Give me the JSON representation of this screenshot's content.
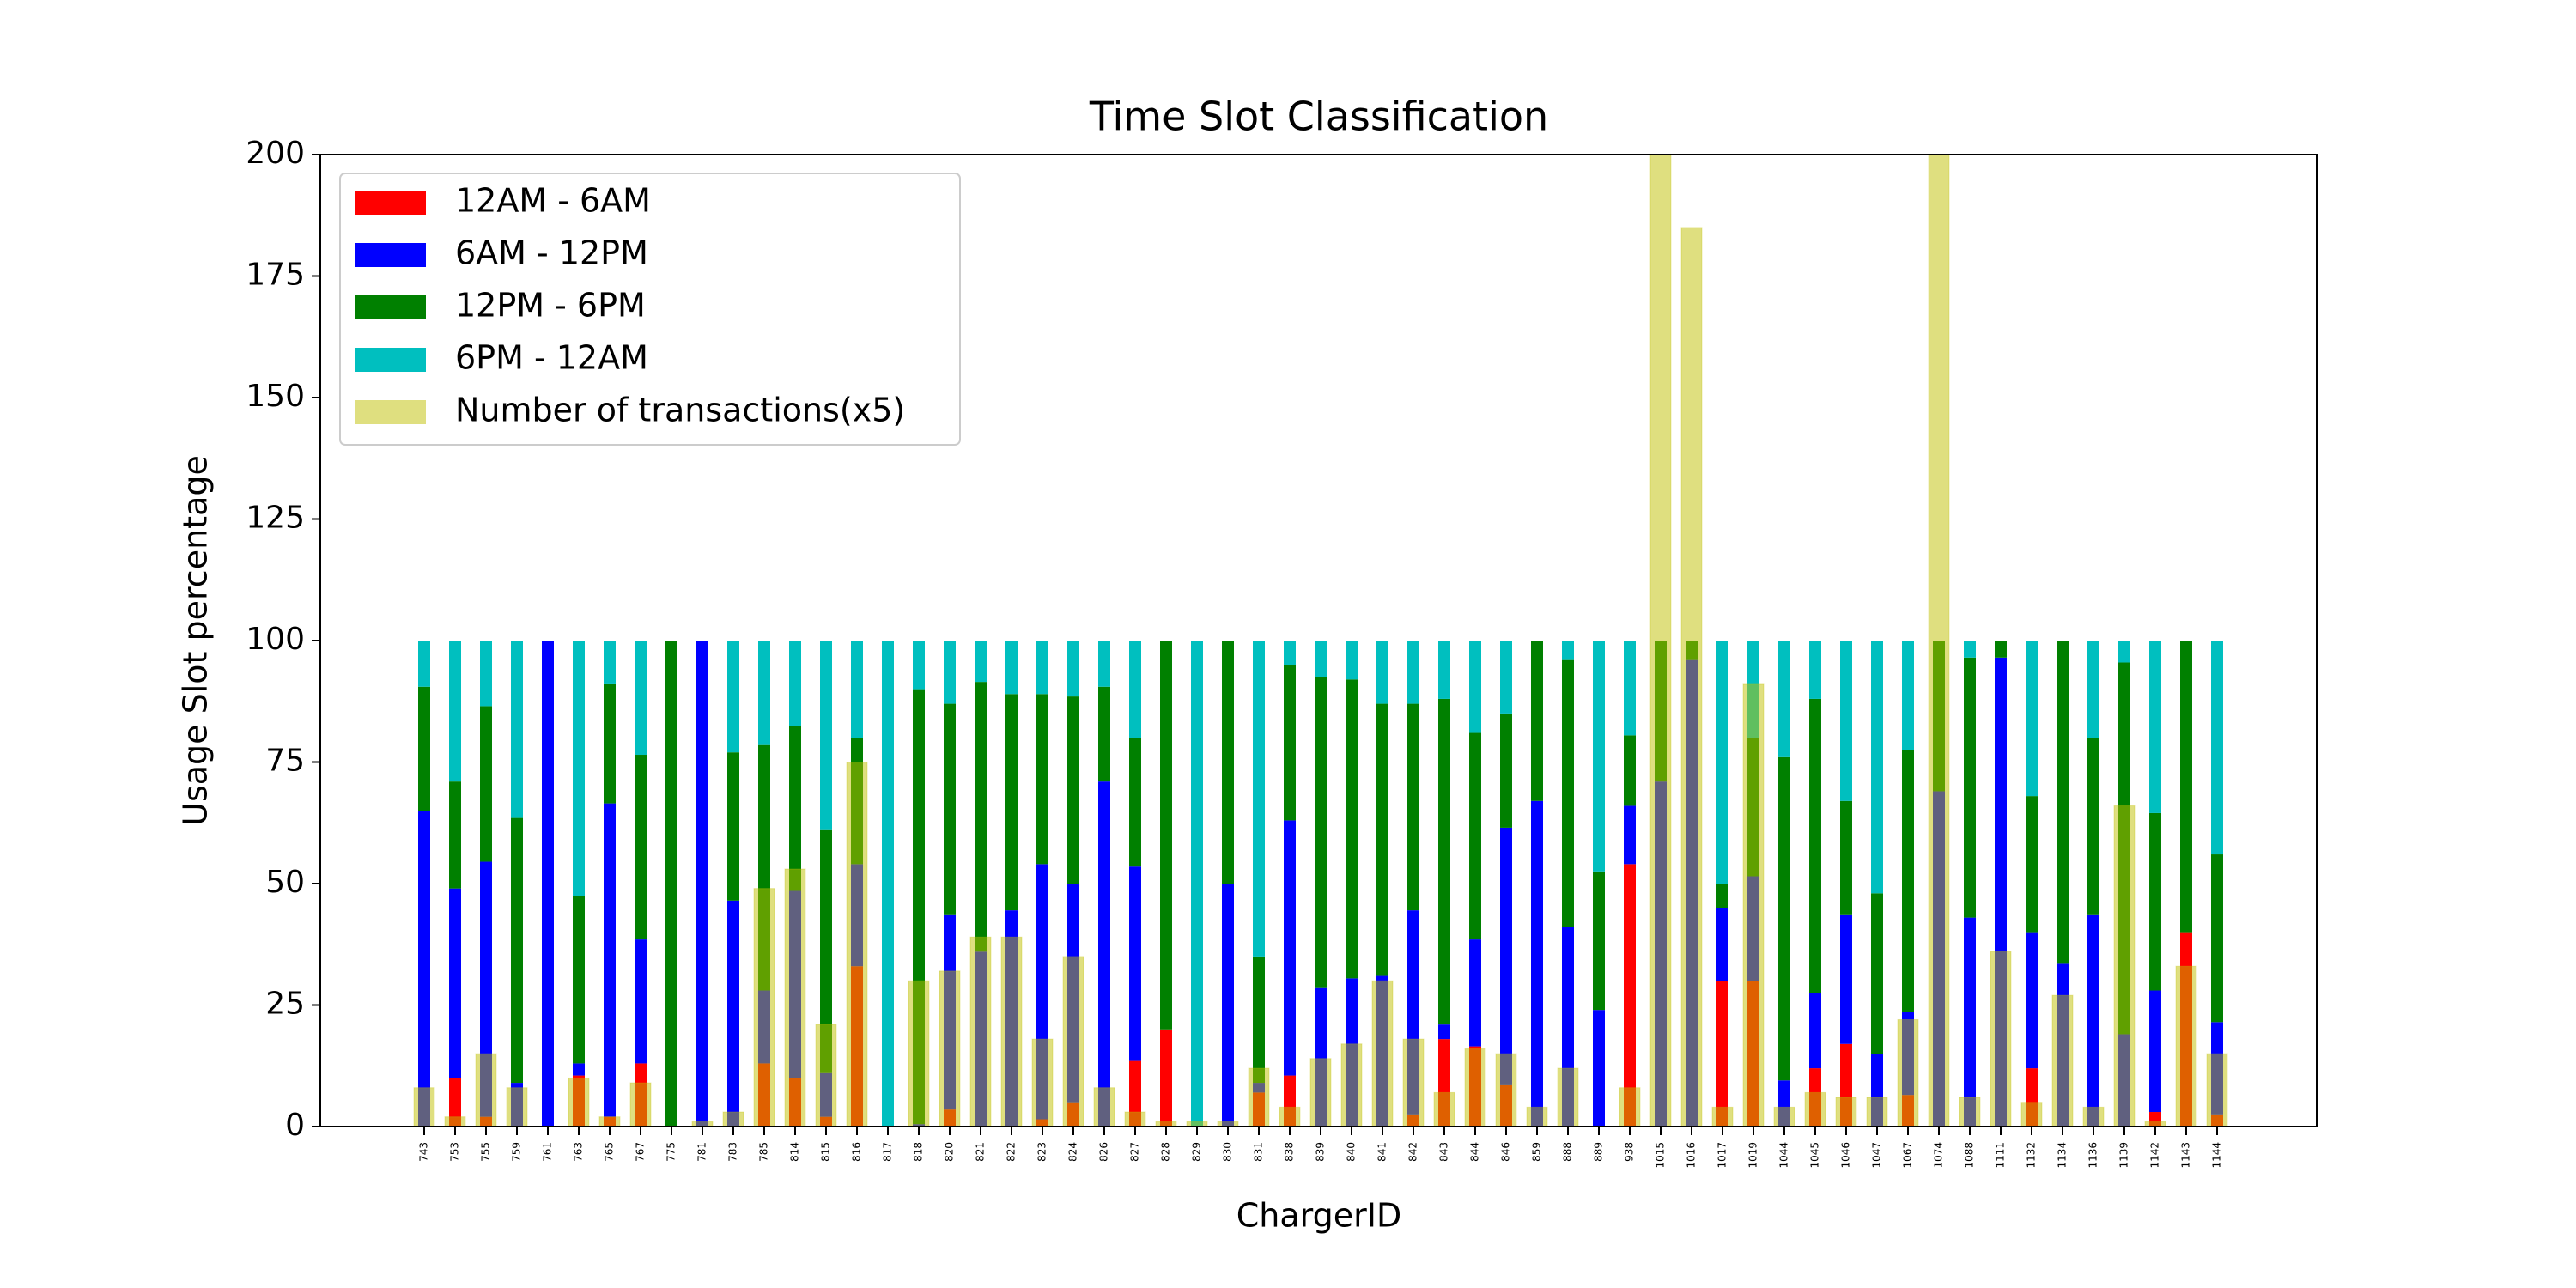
{
  "chart_data": {
    "type": "bar",
    "title": "Time Slot Classification",
    "x_label": "ChargerID",
    "y_label": "Usage Slot percentage",
    "categories": [
      "743",
      "753",
      "755",
      "759",
      "761",
      "763",
      "765",
      "767",
      "775",
      "781",
      "783",
      "785",
      "814",
      "815",
      "816",
      "817",
      "818",
      "820",
      "821",
      "822",
      "823",
      "824",
      "826",
      "827",
      "828",
      "829",
      "830",
      "831",
      "838",
      "839",
      "840",
      "841",
      "842",
      "843",
      "844",
      "846",
      "859",
      "888",
      "889",
      "938",
      "1015",
      "1016",
      "1017",
      "1019",
      "1044",
      "1045",
      "1046",
      "1047",
      "1067",
      "1074",
      "1088",
      "1111",
      "1132",
      "1134",
      "1136",
      "1139",
      "1142",
      "1143",
      "1144"
    ],
    "series": [
      {
        "name": "12AM - 6AM",
        "color": "#ff0000",
        "values": [
          0,
          10,
          2,
          0,
          0,
          10.5,
          2,
          13,
          0,
          0,
          0,
          13,
          10,
          2,
          33,
          0,
          0,
          3.5,
          0,
          0,
          1.5,
          5,
          0,
          13.5,
          20,
          0,
          0,
          7,
          10.5,
          0,
          0,
          0,
          2.5,
          18,
          16.5,
          8.5,
          0,
          0,
          0,
          54,
          0,
          0,
          30,
          30,
          0,
          12,
          17,
          0,
          6.5,
          0,
          0,
          0,
          12,
          0,
          0,
          0,
          3,
          40,
          2.5
        ]
      },
      {
        "name": "6AM - 12PM",
        "color": "#0000ff",
        "values": [
          65,
          39,
          52.5,
          9,
          100,
          2.5,
          64.5,
          25.5,
          0,
          100,
          46.5,
          15,
          38.5,
          9,
          21,
          0,
          0.5,
          40,
          36,
          44.5,
          52.5,
          45,
          71,
          40,
          0,
          0,
          50,
          2,
          52.5,
          28.5,
          30.5,
          31,
          42,
          3,
          22,
          53,
          67,
          41,
          24,
          12,
          71,
          96,
          15,
          21.5,
          9.5,
          15.5,
          26.5,
          15,
          17,
          69,
          43,
          96.5,
          28,
          33.5,
          43.5,
          19,
          25,
          0,
          19
        ]
      },
      {
        "name": "12PM - 6PM",
        "color": "#008000",
        "values": [
          25.5,
          22,
          32,
          54.5,
          0,
          34.5,
          24.5,
          38,
          100,
          0,
          30.5,
          50.5,
          34,
          50,
          26,
          0,
          89.5,
          43.5,
          55.5,
          44.5,
          35,
          38.5,
          19.5,
          26.5,
          80,
          0,
          50,
          26,
          32,
          64,
          61.5,
          56,
          42.5,
          67,
          42.5,
          23.5,
          33,
          55,
          28.5,
          14.5,
          29,
          4,
          5,
          28.5,
          66.5,
          60.5,
          23.5,
          33,
          54,
          31,
          53.5,
          3.5,
          28,
          66.5,
          36.5,
          76.5,
          36.5,
          60,
          34.5
        ]
      },
      {
        "name": "6PM - 12AM",
        "color": "#00bfbf",
        "values": [
          9.5,
          29,
          13.5,
          36.5,
          0,
          52.5,
          9,
          23.5,
          0,
          0,
          23,
          21.5,
          17.5,
          39,
          20,
          100,
          10,
          13,
          8.5,
          11,
          11,
          11.5,
          9.5,
          20,
          0,
          100,
          0,
          65,
          5,
          7.5,
          8,
          13,
          13,
          12,
          19,
          15,
          0,
          4,
          47.5,
          19.5,
          0,
          0,
          50,
          20,
          24,
          12,
          33,
          52,
          22.5,
          0,
          3.5,
          0,
          32,
          0,
          20,
          4.5,
          35.5,
          0,
          44
        ]
      },
      {
        "name": "Number of transactions(x5)",
        "color": "#bfbf00",
        "alpha": 0.5,
        "values": [
          8,
          2,
          15,
          8,
          0,
          10,
          2,
          9,
          0,
          1,
          3,
          49,
          53,
          21,
          75,
          0,
          30,
          32,
          39,
          39,
          18,
          35,
          8,
          3,
          1,
          1,
          1,
          12,
          4,
          14,
          17,
          30,
          18,
          7,
          16,
          15,
          4,
          12,
          0,
          8,
          200,
          185,
          4,
          91,
          4,
          7,
          6,
          6,
          22,
          200,
          6,
          36,
          5,
          27,
          4,
          66,
          1,
          33,
          15
        ]
      }
    ],
    "ylim": [
      0,
      200
    ],
    "yticks": [
      0,
      25,
      50,
      75,
      100,
      125,
      150,
      175,
      200
    ],
    "legend": "upper left",
    "grid": false
  }
}
